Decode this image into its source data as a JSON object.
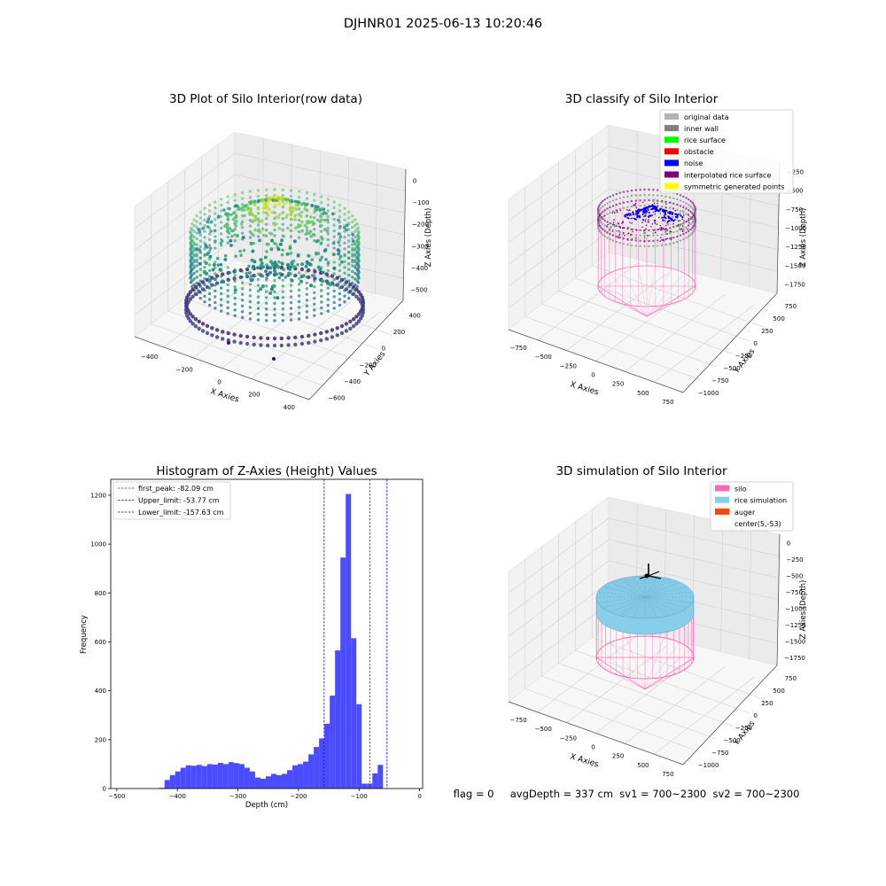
{
  "figure": {
    "suptitle": "DJHNR01 2025-06-13 10:20:46",
    "status_line": "flag = 0     avgDepth = 337 cm  sv1 = 700~2300  sv2 = 700~2300"
  },
  "colors": {
    "hist_bar": "#0000ff",
    "peak_line": "#ff0000",
    "limit_line": "#0000ff",
    "silo_pink": "#ff69b4",
    "rice_blue": "#87ceeb",
    "auger": "#ff4500",
    "original": "#b3b3b3",
    "inner_wall": "#808080",
    "rice_surface": "#00ff00",
    "obstacle": "#ff0000",
    "noise": "#0000ff",
    "interpolated": "#800080",
    "symmetric": "#ffff00"
  },
  "chart_data": [
    {
      "type": "scatter",
      "title": "3D Plot of Silo Interior(row data)",
      "xlabel": "X Axies",
      "ylabel": "Y Axies",
      "zlabel": "Z Axies (Depth)",
      "x_ticks": [
        "−400",
        "−200",
        "0",
        "200",
        "400"
      ],
      "y_ticks": [
        "−600",
        "−400",
        "−200",
        "0",
        "200",
        "400"
      ],
      "z_ticks": [
        "0",
        "−100",
        "−200",
        "−300",
        "−400",
        "−500"
      ],
      "xlim": [
        -500,
        500
      ],
      "ylim": [
        -600,
        400
      ],
      "zlim": [
        -540,
        0
      ],
      "colormap": "viridis",
      "description_series": [
        {
          "kind": "wall",
          "radius": 310,
          "z_top": -200,
          "z_bottom": -400
        },
        {
          "kind": "peak",
          "z_top": -100
        },
        {
          "kind": "floor_ring",
          "radius": 350,
          "z": -480
        }
      ]
    },
    {
      "type": "scatter",
      "title": "3D classify of Silo Interior",
      "xlabel": "X Axies",
      "ylabel": "Y Axies",
      "zlabel": "Z Axies (Depth)",
      "x_ticks": [
        "−750",
        "−500",
        "−250",
        "0",
        "250",
        "500",
        "750"
      ],
      "y_ticks": [
        "−1000",
        "−750",
        "−500",
        "−250",
        "0",
        "250",
        "500",
        "750"
      ],
      "z_ticks": [
        "−250",
        "−500",
        "−750",
        "−1000",
        "−1250",
        "−1500",
        "−1750"
      ],
      "xlim": [
        -900,
        900
      ],
      "ylim": [
        -1000,
        900
      ],
      "zlim": [
        -1750,
        0
      ],
      "legend": [
        "original data",
        "inner wall",
        "rice surface",
        "obstacle",
        "noise",
        "interpolated rice surface",
        "symmetric generated points"
      ],
      "legend_position": "top-right"
    },
    {
      "type": "bar",
      "title": "Histogram of Z-Axies (Height) Values",
      "xlabel": "Depth (cm)",
      "ylabel": "Frequency",
      "xlim": [
        -510,
        5
      ],
      "ylim": [
        0,
        1265
      ],
      "x_ticks": [
        -500,
        -400,
        -300,
        -200,
        -100,
        0
      ],
      "y_ticks": [
        0,
        200,
        400,
        600,
        800,
        1000,
        1200
      ],
      "bin_start": -430,
      "bin_width": 8.8,
      "values": [
        3,
        35,
        55,
        70,
        85,
        95,
        93,
        97,
        92,
        100,
        98,
        105,
        100,
        108,
        104,
        100,
        85,
        70,
        45,
        40,
        50,
        60,
        55,
        60,
        75,
        95,
        100,
        110,
        140,
        170,
        205,
        265,
        380,
        565,
        945,
        1205,
        615,
        345,
        20,
        20,
        62,
        97
      ],
      "vlines": [
        {
          "label": "first_peak: -82.09 cm",
          "x": -82.09,
          "color": "red"
        },
        {
          "label": "Upper_limit: -53.77 cm",
          "x": -53.77,
          "color": "blue"
        },
        {
          "label": "Lower_limit: -157.63 cm",
          "x": -157.63,
          "color": "blue"
        }
      ]
    },
    {
      "type": "scatter",
      "title": "3D simulation of Silo Interior",
      "xlabel": "X Axies",
      "ylabel": "Y Axies",
      "zlabel": "Z Axies (Depth)",
      "x_ticks": [
        "−750",
        "−500",
        "−250",
        "0",
        "250",
        "500",
        "750"
      ],
      "y_ticks": [
        "−1000",
        "−750",
        "−500",
        "−250",
        "0",
        "250",
        "500",
        "750"
      ],
      "z_ticks": [
        "0",
        "−250",
        "−500",
        "−750",
        "−1000",
        "−1250",
        "−1500",
        "−1750"
      ],
      "xlim": [
        -900,
        900
      ],
      "ylim": [
        -1000,
        900
      ],
      "zlim": [
        -1750,
        0
      ],
      "legend": [
        "silo",
        "rice simulation",
        "auger",
        "center(5,-53)"
      ],
      "legend_position": "top-right"
    }
  ]
}
